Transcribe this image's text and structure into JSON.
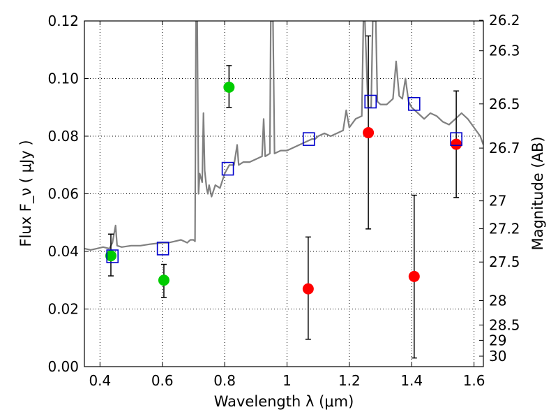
{
  "chart_data": {
    "type": "scatter",
    "title": "",
    "xlabel": "Wavelength  λ (μm)",
    "ylabel": "Flux  F_ν  ( μJy )",
    "y2label": "Magnitude (AB)",
    "xlim": [
      0.35,
      1.63
    ],
    "ylim": [
      0,
      0.12
    ],
    "xticks": [
      0.4,
      0.6,
      0.8,
      1.0,
      1.2,
      1.4,
      1.6
    ],
    "xtick_labels": [
      "0.4",
      "0.6",
      "0.8",
      "1",
      "1.2",
      "1.4",
      "1.6"
    ],
    "yticks": [
      0,
      0.02,
      0.04,
      0.06,
      0.08,
      0.1,
      0.12
    ],
    "ytick_labels": [
      "0.00",
      "0.02",
      "0.04",
      "0.06",
      "0.08",
      "0.10",
      "0.12"
    ],
    "y2ticks": [
      26.2,
      26.3,
      26.5,
      26.7,
      27,
      27.2,
      27.5,
      28,
      28.5,
      29,
      30
    ],
    "y2tick_labels": [
      "26.2",
      "26.3",
      "26.5",
      "26.7",
      "27",
      "27.2",
      "27.5",
      "28",
      "28.5",
      "29",
      "30"
    ],
    "grid": true,
    "colors": {
      "model": "#808080",
      "green": "#00cc00",
      "red": "#ff0000",
      "squares": "#0000cc",
      "errorbar": "#000000"
    },
    "series": [
      {
        "kind": "line",
        "points": [
          [
            0.35,
            0.041
          ],
          [
            0.37,
            0.0405
          ],
          [
            0.39,
            0.041
          ],
          [
            0.41,
            0.0415
          ],
          [
            0.43,
            0.041
          ],
          [
            0.44,
            0.043
          ],
          [
            0.45,
            0.049
          ],
          [
            0.455,
            0.042
          ],
          [
            0.47,
            0.0415
          ],
          [
            0.5,
            0.042
          ],
          [
            0.53,
            0.042
          ],
          [
            0.56,
            0.0425
          ],
          [
            0.6,
            0.043
          ],
          [
            0.62,
            0.043
          ],
          [
            0.64,
            0.0435
          ],
          [
            0.66,
            0.044
          ],
          [
            0.68,
            0.043
          ],
          [
            0.69,
            0.044
          ],
          [
            0.7,
            0.044
          ],
          [
            0.705,
            0.0435
          ],
          [
            0.708,
            0.12
          ],
          [
            0.712,
            0.12
          ],
          [
            0.716,
            0.06
          ],
          [
            0.72,
            0.067
          ],
          [
            0.728,
            0.064
          ],
          [
            0.732,
            0.088
          ],
          [
            0.736,
            0.068
          ],
          [
            0.742,
            0.062
          ],
          [
            0.746,
            0.06
          ],
          [
            0.75,
            0.063
          ],
          [
            0.758,
            0.059
          ],
          [
            0.77,
            0.063
          ],
          [
            0.785,
            0.062
          ],
          [
            0.8,
            0.067
          ],
          [
            0.815,
            0.07
          ],
          [
            0.83,
            0.07
          ],
          [
            0.84,
            0.077
          ],
          [
            0.845,
            0.07
          ],
          [
            0.86,
            0.071
          ],
          [
            0.88,
            0.071
          ],
          [
            0.9,
            0.072
          ],
          [
            0.92,
            0.073
          ],
          [
            0.925,
            0.086
          ],
          [
            0.93,
            0.073
          ],
          [
            0.945,
            0.074
          ],
          [
            0.948,
            0.12
          ],
          [
            0.955,
            0.12
          ],
          [
            0.96,
            0.074
          ],
          [
            0.98,
            0.075
          ],
          [
            1.0,
            0.075
          ],
          [
            1.02,
            0.076
          ],
          [
            1.04,
            0.077
          ],
          [
            1.06,
            0.078
          ],
          [
            1.08,
            0.079
          ],
          [
            1.09,
            0.079
          ],
          [
            1.1,
            0.08
          ],
          [
            1.12,
            0.081
          ],
          [
            1.14,
            0.08
          ],
          [
            1.16,
            0.081
          ],
          [
            1.18,
            0.082
          ],
          [
            1.19,
            0.089
          ],
          [
            1.2,
            0.083
          ],
          [
            1.22,
            0.086
          ],
          [
            1.24,
            0.087
          ],
          [
            1.245,
            0.12
          ],
          [
            1.25,
            0.12
          ],
          [
            1.26,
            0.09
          ],
          [
            1.27,
            0.09
          ],
          [
            1.275,
            0.12
          ],
          [
            1.285,
            0.12
          ],
          [
            1.29,
            0.092
          ],
          [
            1.3,
            0.091
          ],
          [
            1.32,
            0.091
          ],
          [
            1.34,
            0.093
          ],
          [
            1.35,
            0.106
          ],
          [
            1.36,
            0.094
          ],
          [
            1.37,
            0.093
          ],
          [
            1.38,
            0.1
          ],
          [
            1.39,
            0.092
          ],
          [
            1.4,
            0.09
          ],
          [
            1.42,
            0.088
          ],
          [
            1.44,
            0.086
          ],
          [
            1.46,
            0.088
          ],
          [
            1.48,
            0.087
          ],
          [
            1.5,
            0.085
          ],
          [
            1.52,
            0.084
          ],
          [
            1.54,
            0.086
          ],
          [
            1.56,
            0.088
          ],
          [
            1.58,
            0.086
          ],
          [
            1.6,
            0.083
          ],
          [
            1.62,
            0.08
          ],
          [
            1.63,
            0.077
          ]
        ]
      },
      {
        "kind": "points",
        "marker": "circle",
        "color": "green",
        "points": [
          {
            "x": 0.435,
            "y": 0.0385,
            "yerr_low": 0.0315,
            "yerr_high": 0.046
          },
          {
            "x": 0.605,
            "y": 0.03,
            "yerr_low": 0.024,
            "yerr_high": 0.0355
          },
          {
            "x": 0.814,
            "y": 0.097,
            "yerr_low": 0.09,
            "yerr_high": 0.1045
          }
        ]
      },
      {
        "kind": "points",
        "marker": "circle",
        "color": "red",
        "points": [
          {
            "x": 1.068,
            "y": 0.027,
            "yerr_low": 0.0095,
            "yerr_high": 0.045
          },
          {
            "x": 1.261,
            "y": 0.0812,
            "yerr_low": 0.0478,
            "yerr_high": 0.1148
          },
          {
            "x": 1.408,
            "y": 0.0313,
            "yerr_low": 0.003,
            "yerr_high": 0.0595
          },
          {
            "x": 1.543,
            "y": 0.0772,
            "yerr_low": 0.0587,
            "yerr_high": 0.0957
          }
        ]
      },
      {
        "kind": "points",
        "marker": "square",
        "color": "squares",
        "points": [
          {
            "x": 0.44,
            "y": 0.0383
          },
          {
            "x": 0.602,
            "y": 0.041
          },
          {
            "x": 0.81,
            "y": 0.0687
          },
          {
            "x": 1.07,
            "y": 0.079
          },
          {
            "x": 1.268,
            "y": 0.092
          },
          {
            "x": 1.408,
            "y": 0.0912
          },
          {
            "x": 1.543,
            "y": 0.079
          }
        ]
      }
    ]
  }
}
